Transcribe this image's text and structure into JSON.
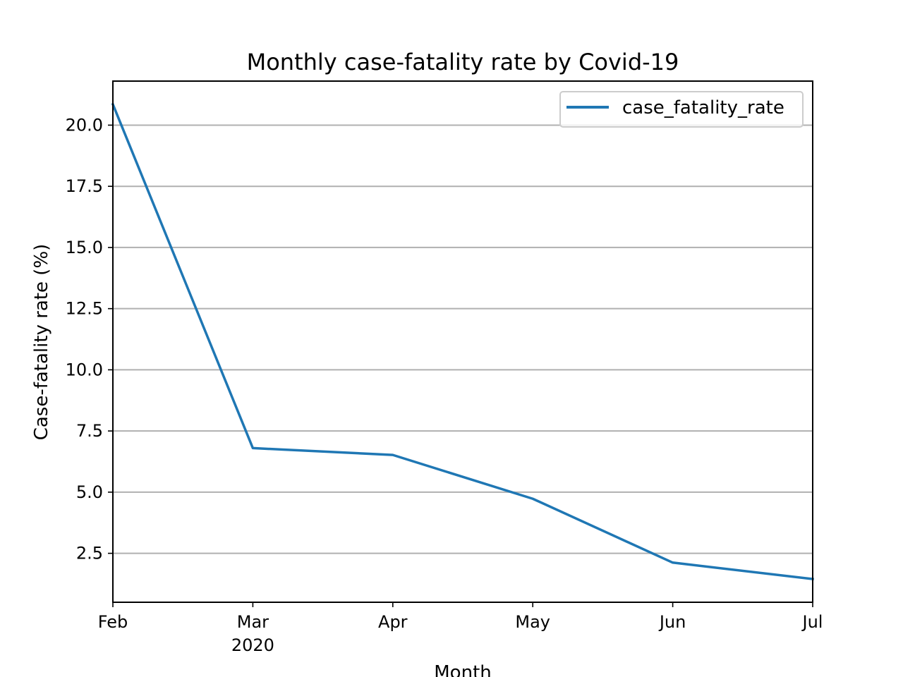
{
  "chart_data": {
    "type": "line",
    "title": "Monthly case-fatality rate by Covid-19",
    "xlabel": "Month",
    "ylabel": "Case-fatality rate (%)",
    "x": [
      "Feb",
      "Mar",
      "Apr",
      "May",
      "Jun",
      "Jul"
    ],
    "x_tick_labels": [
      "Feb",
      "Mar",
      "Apr",
      "May",
      "Jun",
      "Jul"
    ],
    "x_year_label": "2020",
    "ylim": [
      0.5,
      21.8
    ],
    "y_ticks": [
      2.5,
      5.0,
      7.5,
      10.0,
      12.5,
      15.0,
      17.5,
      20.0
    ],
    "y_tick_labels": [
      "2.5",
      "5.0",
      "7.5",
      "10.0",
      "12.5",
      "15.0",
      "17.5",
      "20.0"
    ],
    "grid": "y-major",
    "legend_position": "upper-right",
    "series": [
      {
        "name": "case_fatality_rate",
        "color": "#1f77b4",
        "values": [
          20.85,
          6.8,
          6.52,
          4.73,
          2.12,
          1.45
        ]
      }
    ]
  }
}
